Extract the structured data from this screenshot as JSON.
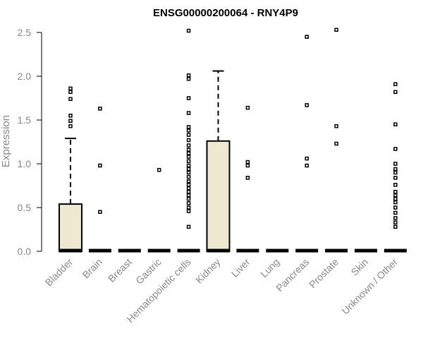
{
  "chart_data": {
    "type": "boxplot",
    "title": "ENSG00000200064 - RNY4P9",
    "xlabel": "",
    "ylabel": "Expression",
    "ylim": [
      0,
      2.5
    ],
    "yticks": [
      "0.0",
      "0.5",
      "1.0",
      "1.5",
      "2.0",
      "2.5"
    ],
    "grid": false,
    "box_color": "#ede8cf",
    "categories": [
      "Bladder",
      "Brain",
      "Breast",
      "Gastric",
      "Hematopoietic cells",
      "Kidney",
      "Liver",
      "Lung",
      "Pancreas",
      "Prostate",
      "Skin",
      "Unknown / Other"
    ],
    "boxes": [
      {
        "q1": 0,
        "median": 0,
        "q3": 0.54,
        "whisker_low": 0,
        "whisker_high": 1.29,
        "outliers": [
          1.43,
          1.49,
          1.55,
          1.74,
          1.82,
          1.86
        ]
      },
      {
        "q1": 0,
        "median": 0,
        "q3": 0,
        "whisker_low": 0,
        "whisker_high": 0,
        "outliers": [
          0.45,
          0.98,
          1.63
        ]
      },
      {
        "q1": 0,
        "median": 0,
        "q3": 0,
        "whisker_low": 0,
        "whisker_high": 0,
        "outliers": []
      },
      {
        "q1": 0,
        "median": 0,
        "q3": 0,
        "whisker_low": 0,
        "whisker_high": 0,
        "outliers": [
          0.93
        ]
      },
      {
        "q1": 0,
        "median": 0,
        "q3": 0,
        "whisker_low": 0,
        "whisker_high": 0,
        "outliers": [
          0.28,
          0.46,
          0.5,
          0.55,
          0.6,
          0.64,
          0.68,
          0.72,
          0.76,
          0.8,
          0.85,
          0.9,
          0.94,
          0.98,
          1.03,
          1.08,
          1.12,
          1.16,
          1.21,
          1.27,
          1.33,
          1.38,
          1.42,
          1.58,
          1.75,
          1.97,
          2.01,
          2.52
        ]
      },
      {
        "q1": 0,
        "median": 0,
        "q3": 1.26,
        "whisker_low": 0,
        "whisker_high": 2.06,
        "outliers": []
      },
      {
        "q1": 0,
        "median": 0,
        "q3": 0,
        "whisker_low": 0,
        "whisker_high": 0,
        "outliers": [
          0.84,
          0.98,
          1.02,
          1.64
        ]
      },
      {
        "q1": 0,
        "median": 0,
        "q3": 0,
        "whisker_low": 0,
        "whisker_high": 0,
        "outliers": []
      },
      {
        "q1": 0,
        "median": 0,
        "q3": 0,
        "whisker_low": 0,
        "whisker_high": 0,
        "outliers": [
          0.98,
          1.06,
          1.67,
          2.45
        ]
      },
      {
        "q1": 0,
        "median": 0,
        "q3": 0,
        "whisker_low": 0,
        "whisker_high": 0,
        "outliers": [
          1.23,
          1.43,
          2.53
        ]
      },
      {
        "q1": 0,
        "median": 0,
        "q3": 0,
        "whisker_low": 0,
        "whisker_high": 0,
        "outliers": []
      },
      {
        "q1": 0,
        "median": 0,
        "q3": 0,
        "whisker_low": 0,
        "whisker_high": 0,
        "outliers": [
          0.28,
          0.33,
          0.38,
          0.44,
          0.5,
          0.56,
          0.6,
          0.64,
          0.68,
          0.76,
          0.84,
          0.9,
          0.94,
          1.0,
          1.17,
          1.45,
          1.82,
          1.91
        ]
      }
    ]
  }
}
